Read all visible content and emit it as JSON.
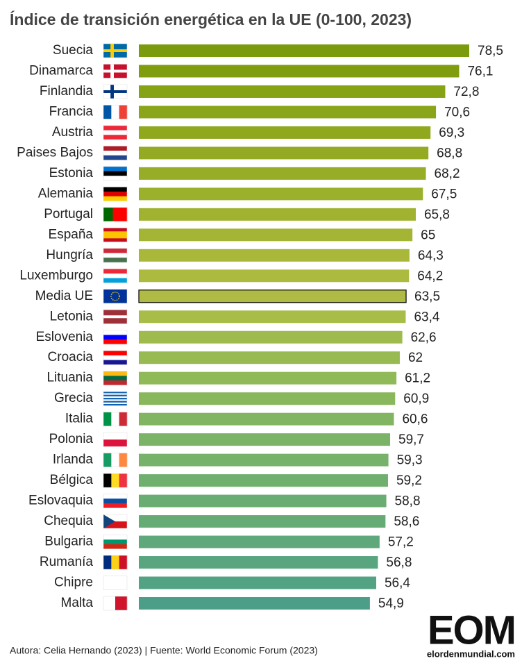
{
  "chart_data": {
    "type": "bar",
    "orientation": "horizontal",
    "title": "Índice de transición energética en la UE (0-100, 2023)",
    "categories": [
      "Suecia",
      "Dinamarca",
      "Finlandia",
      "Francia",
      "Austria",
      "Paises Bajos",
      "Estonia",
      "Alemania",
      "Portugal",
      "España",
      "Hungría",
      "Luxemburgo",
      "Media UE",
      "Letonia",
      "Eslovenia",
      "Croacia",
      "Lituania",
      "Grecia",
      "Italia",
      "Polonia",
      "Irlanda",
      "Bélgica",
      "Eslovaquia",
      "Chequia",
      "Bulgaria",
      "Rumanía",
      "Chipre",
      "Malta"
    ],
    "values": [
      78.5,
      76.1,
      72.8,
      70.6,
      69.3,
      68.8,
      68.2,
      67.5,
      65.8,
      65,
      64.3,
      64.2,
      63.5,
      63.4,
      62.6,
      62,
      61.2,
      60.9,
      60.6,
      59.7,
      59.3,
      59.2,
      58.8,
      58.6,
      57.2,
      56.8,
      56.4,
      54.9
    ],
    "value_labels": [
      "78,5",
      "76,1",
      "72,8",
      "70,6",
      "69,3",
      "68,8",
      "68,2",
      "67,5",
      "65,8",
      "65",
      "64,3",
      "64,2",
      "63,5",
      "63,4",
      "62,6",
      "62",
      "61,2",
      "60,9",
      "60,6",
      "59,7",
      "59,3",
      "59,2",
      "58,8",
      "58,6",
      "57,2",
      "56,8",
      "56,4",
      "54,9"
    ],
    "colors": [
      "#7b9a0c",
      "#7f9d0f",
      "#86a215",
      "#8aa51a",
      "#8fa81e",
      "#93aa22",
      "#97ad27",
      "#9bb02b",
      "#a0b230",
      "#a4b535",
      "#a9b83b",
      "#adba40",
      "#b0bb45",
      "#a8bc48",
      "#a0bb4d",
      "#98ba52",
      "#90b957",
      "#89b75c",
      "#82b561",
      "#7bb466",
      "#76b26a",
      "#70b06e",
      "#6aad72",
      "#64ab76",
      "#5ea87b",
      "#58a57f",
      "#52a284",
      "#4c9e88"
    ],
    "highlight": "Media UE",
    "footer": "Autora: Celia Hernando (2023) | Fuente: World Economic Forum (2023)",
    "logo": {
      "letters": "EOM",
      "site": "elordenmundial.com"
    }
  }
}
